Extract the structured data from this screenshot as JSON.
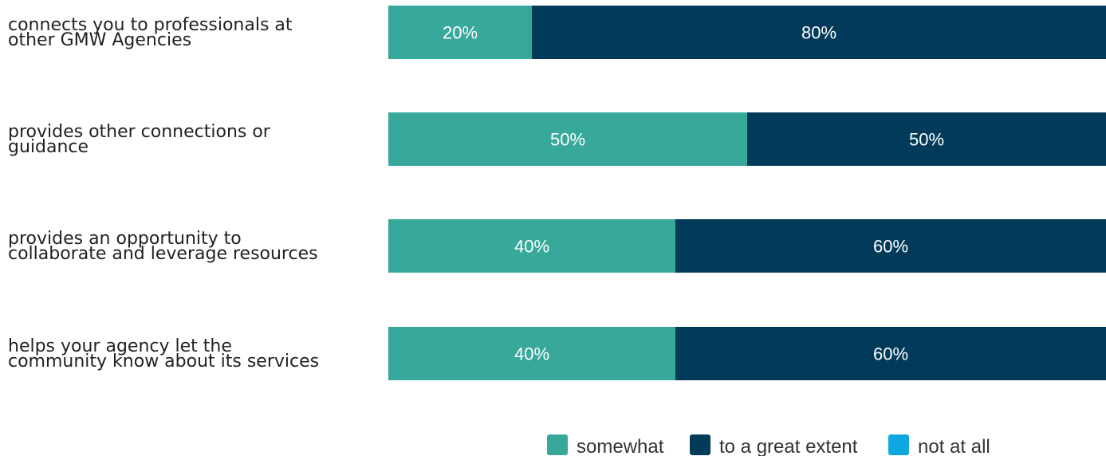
{
  "chart_data": {
    "type": "bar",
    "orientation": "horizontal",
    "stacked": "percent",
    "categories": [
      [
        "connects you to professionals at",
        "other GMW Agencies"
      ],
      [
        "provides other connections or",
        "guidance"
      ],
      [
        "provides an opportunity to",
        "collaborate and leverage resources"
      ],
      [
        "helps your agency let the",
        "community know about its services"
      ]
    ],
    "series": [
      {
        "name": "somewhat",
        "color": "#37a899",
        "values": [
          20,
          50,
          40,
          40
        ]
      },
      {
        "name": "to a great extent",
        "color": "#023b5a",
        "values": [
          80,
          50,
          60,
          60
        ]
      },
      {
        "name": "not at all",
        "color": "#0ea7e0",
        "values": [
          0,
          0,
          0,
          0
        ]
      }
    ],
    "value_suffix": "%",
    "xlim": [
      0,
      100
    ],
    "grid": false,
    "legend_position": "bottom-right"
  }
}
